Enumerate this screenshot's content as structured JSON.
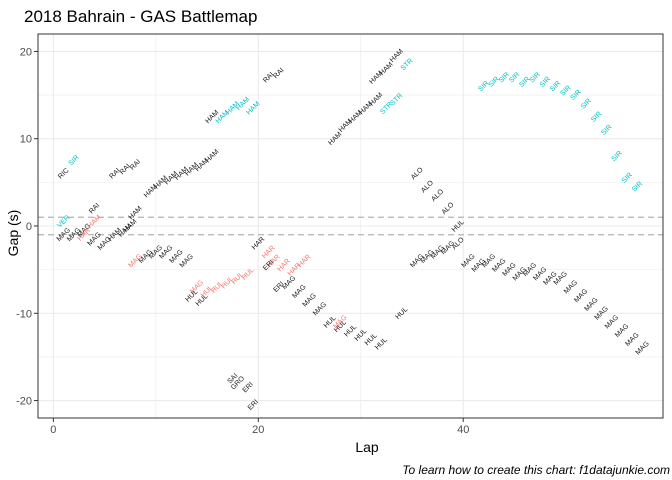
{
  "chart_data": {
    "type": "scatter",
    "title": "2018 Bahrain - GAS Battlemap",
    "xlabel": "Lap",
    "ylabel": "Gap (s)",
    "caption": "To learn how to create this chart: f1datajunkie.com",
    "xlim": [
      -1.5,
      59.5
    ],
    "ylim": [
      -22,
      22
    ],
    "x_ticks": [
      0,
      20,
      40
    ],
    "y_ticks": [
      -20,
      -10,
      0,
      10,
      20
    ],
    "grid": true,
    "reference_lines": [
      1,
      -1
    ],
    "colors": {
      "default": "#1a1a1a",
      "red": "#f8766d",
      "cyan": "#00bfc4",
      "grid": "#ebebeb",
      "reference": "#b3b3b3"
    },
    "points": [
      {
        "x": 1,
        "y": 6,
        "label": "RIC",
        "color": "default"
      },
      {
        "x": 2,
        "y": 7.5,
        "label": "SIR",
        "color": "cyan"
      },
      {
        "x": 1,
        "y": 0.5,
        "label": "VER",
        "color": "cyan"
      },
      {
        "x": 1,
        "y": -1,
        "label": "MAG",
        "color": "default"
      },
      {
        "x": 2,
        "y": -1,
        "label": "MAG",
        "color": "default"
      },
      {
        "x": 3,
        "y": -0.5,
        "label": "MAG",
        "color": "default"
      },
      {
        "x": 3,
        "y": -1,
        "label": "HAR",
        "color": "red"
      },
      {
        "x": 4,
        "y": 2,
        "label": "RAI",
        "color": "default"
      },
      {
        "x": 4,
        "y": 0.5,
        "label": "HAM",
        "color": "red"
      },
      {
        "x": 4,
        "y": -1.5,
        "label": "MAG",
        "color": "default"
      },
      {
        "x": 5,
        "y": -2,
        "label": "MAG",
        "color": "default"
      },
      {
        "x": 6,
        "y": -1,
        "label": "HAM",
        "color": "default"
      },
      {
        "x": 7,
        "y": -0.5,
        "label": "HAM",
        "color": "default"
      },
      {
        "x": 7.5,
        "y": 0,
        "label": "HAM",
        "color": "default"
      },
      {
        "x": 6,
        "y": 6,
        "label": "RAI",
        "color": "default"
      },
      {
        "x": 7,
        "y": 6.5,
        "label": "RAI",
        "color": "default"
      },
      {
        "x": 8,
        "y": 7,
        "label": "RAI",
        "color": "default"
      },
      {
        "x": 8,
        "y": 1.5,
        "label": "HAM",
        "color": "default"
      },
      {
        "x": 8,
        "y": -4,
        "label": "MAG",
        "color": "red"
      },
      {
        "x": 9,
        "y": -3.5,
        "label": "MAG",
        "color": "default"
      },
      {
        "x": 10,
        "y": -3,
        "label": "MAG",
        "color": "default"
      },
      {
        "x": 11,
        "y": -3,
        "label": "MAG",
        "color": "default"
      },
      {
        "x": 12,
        "y": -3.5,
        "label": "MAG",
        "color": "default"
      },
      {
        "x": 13,
        "y": -4,
        "label": "MAG",
        "color": "default"
      },
      {
        "x": 9.5,
        "y": 4,
        "label": "HAM",
        "color": "default"
      },
      {
        "x": 10.5,
        "y": 5,
        "label": "HAM",
        "color": "default"
      },
      {
        "x": 11.5,
        "y": 5.5,
        "label": "HAM",
        "color": "default"
      },
      {
        "x": 12.5,
        "y": 6,
        "label": "HAM",
        "color": "default"
      },
      {
        "x": 13.5,
        "y": 6.5,
        "label": "HAM",
        "color": "default"
      },
      {
        "x": 14.5,
        "y": 7,
        "label": "HAM",
        "color": "default"
      },
      {
        "x": 15.5,
        "y": 8,
        "label": "HAM",
        "color": "default"
      },
      {
        "x": 15.5,
        "y": 12.5,
        "label": "HAM",
        "color": "default"
      },
      {
        "x": 16.5,
        "y": 12.5,
        "label": "HAM",
        "color": "cyan"
      },
      {
        "x": 17.5,
        "y": 13.5,
        "label": "HAM",
        "color": "cyan"
      },
      {
        "x": 18.5,
        "y": 14,
        "label": "HAM",
        "color": "cyan"
      },
      {
        "x": 19.5,
        "y": 13.5,
        "label": "HAM",
        "color": "cyan"
      },
      {
        "x": 14,
        "y": -7,
        "label": "MAG",
        "color": "red"
      },
      {
        "x": 13.5,
        "y": -8,
        "label": "HUL",
        "color": "default"
      },
      {
        "x": 14.5,
        "y": -8.5,
        "label": "HUL",
        "color": "default"
      },
      {
        "x": 15,
        "y": -7.5,
        "label": "HUL",
        "color": "red"
      },
      {
        "x": 16,
        "y": -7,
        "label": "HUL",
        "color": "red"
      },
      {
        "x": 17,
        "y": -6.5,
        "label": "HUL",
        "color": "red"
      },
      {
        "x": 18,
        "y": -6,
        "label": "HUL",
        "color": "red"
      },
      {
        "x": 19,
        "y": -5.5,
        "label": "HUL",
        "color": "red"
      },
      {
        "x": 21,
        "y": 17,
        "label": "RAI",
        "color": "default"
      },
      {
        "x": 22,
        "y": 17.5,
        "label": "RAI",
        "color": "default"
      },
      {
        "x": 20,
        "y": -2,
        "label": "HAR",
        "color": "default"
      },
      {
        "x": 21,
        "y": -3,
        "label": "HAR",
        "color": "red"
      },
      {
        "x": 21.5,
        "y": -4,
        "label": "HAR",
        "color": "red"
      },
      {
        "x": 22.5,
        "y": -4.5,
        "label": "HAR",
        "color": "red"
      },
      {
        "x": 23.5,
        "y": -5,
        "label": "HAR",
        "color": "red"
      },
      {
        "x": 24.5,
        "y": -4,
        "label": "HAR",
        "color": "red"
      },
      {
        "x": 21,
        "y": -4.5,
        "label": "ERI",
        "color": "default"
      },
      {
        "x": 22,
        "y": -7,
        "label": "ERI",
        "color": "default"
      },
      {
        "x": 23,
        "y": -6.5,
        "label": "MAG",
        "color": "default"
      },
      {
        "x": 24,
        "y": -7.5,
        "label": "MAG",
        "color": "default"
      },
      {
        "x": 25,
        "y": -8.5,
        "label": "MAG",
        "color": "default"
      },
      {
        "x": 26,
        "y": -9.5,
        "label": "MAG",
        "color": "default"
      },
      {
        "x": 27,
        "y": -11,
        "label": "HUL",
        "color": "default"
      },
      {
        "x": 28,
        "y": -11.5,
        "label": "HUL",
        "color": "default"
      },
      {
        "x": 28,
        "y": -11,
        "label": "MAG",
        "color": "red"
      },
      {
        "x": 29,
        "y": -12,
        "label": "HUL",
        "color": "default"
      },
      {
        "x": 30,
        "y": -12.5,
        "label": "HUL",
        "color": "default"
      },
      {
        "x": 31,
        "y": -13,
        "label": "HUL",
        "color": "default"
      },
      {
        "x": 32,
        "y": -13.5,
        "label": "HUL",
        "color": "default"
      },
      {
        "x": 34,
        "y": -10,
        "label": "HUL",
        "color": "default"
      },
      {
        "x": 17.5,
        "y": -17.5,
        "label": "SAI",
        "color": "default"
      },
      {
        "x": 18,
        "y": -18,
        "label": "GRO",
        "color": "default"
      },
      {
        "x": 19,
        "y": -18.5,
        "label": "ERI",
        "color": "default"
      },
      {
        "x": 19.5,
        "y": -20.5,
        "label": "ERI",
        "color": "default"
      },
      {
        "x": 27.5,
        "y": 10,
        "label": "HAM",
        "color": "default"
      },
      {
        "x": 28.5,
        "y": 11.5,
        "label": "HAM",
        "color": "default"
      },
      {
        "x": 29.5,
        "y": 12.5,
        "label": "HAM",
        "color": "default"
      },
      {
        "x": 30.5,
        "y": 13.5,
        "label": "HAM",
        "color": "default"
      },
      {
        "x": 31.5,
        "y": 14.5,
        "label": "HAM",
        "color": "default"
      },
      {
        "x": 31.5,
        "y": 17,
        "label": "HAM",
        "color": "default"
      },
      {
        "x": 32.5,
        "y": 18,
        "label": "HAM",
        "color": "default"
      },
      {
        "x": 33.5,
        "y": 19.5,
        "label": "HAM",
        "color": "default"
      },
      {
        "x": 32.5,
        "y": 13.5,
        "label": "STR",
        "color": "cyan"
      },
      {
        "x": 33.5,
        "y": 14.5,
        "label": "STR",
        "color": "cyan"
      },
      {
        "x": 34.5,
        "y": 18.5,
        "label": "STR",
        "color": "cyan"
      },
      {
        "x": 35.5,
        "y": 6,
        "label": "ALO",
        "color": "default"
      },
      {
        "x": 36.5,
        "y": 4.5,
        "label": "ALO",
        "color": "default"
      },
      {
        "x": 37.5,
        "y": 3.5,
        "label": "ALO",
        "color": "default"
      },
      {
        "x": 38.5,
        "y": 2,
        "label": "ALO",
        "color": "default"
      },
      {
        "x": 39.5,
        "y": 0,
        "label": "HUL",
        "color": "default"
      },
      {
        "x": 35.5,
        "y": -4,
        "label": "MAG",
        "color": "default"
      },
      {
        "x": 36.5,
        "y": -3.5,
        "label": "MAG",
        "color": "default"
      },
      {
        "x": 37.5,
        "y": -3,
        "label": "MAG",
        "color": "default"
      },
      {
        "x": 38.5,
        "y": -2.5,
        "label": "MAG",
        "color": "default"
      },
      {
        "x": 39.5,
        "y": -2,
        "label": "ALO",
        "color": "default"
      },
      {
        "x": 40.5,
        "y": -4,
        "label": "MAG",
        "color": "default"
      },
      {
        "x": 41.5,
        "y": -4.5,
        "label": "MAG",
        "color": "default"
      },
      {
        "x": 42.5,
        "y": -4,
        "label": "MAG",
        "color": "default"
      },
      {
        "x": 43.5,
        "y": -4.5,
        "label": "MAG",
        "color": "default"
      },
      {
        "x": 44.5,
        "y": -5,
        "label": "MAG",
        "color": "default"
      },
      {
        "x": 45.5,
        "y": -5.5,
        "label": "MAG",
        "color": "default"
      },
      {
        "x": 46.5,
        "y": -5,
        "label": "MAG",
        "color": "default"
      },
      {
        "x": 47.5,
        "y": -5.5,
        "label": "MAG",
        "color": "default"
      },
      {
        "x": 48.5,
        "y": -6,
        "label": "MAG",
        "color": "default"
      },
      {
        "x": 49.5,
        "y": -6,
        "label": "MAG",
        "color": "default"
      },
      {
        "x": 50.5,
        "y": -7,
        "label": "MAG",
        "color": "default"
      },
      {
        "x": 51.5,
        "y": -8,
        "label": "MAG",
        "color": "default"
      },
      {
        "x": 52.5,
        "y": -9,
        "label": "MAG",
        "color": "default"
      },
      {
        "x": 53.5,
        "y": -10,
        "label": "MAG",
        "color": "default"
      },
      {
        "x": 54.5,
        "y": -11,
        "label": "MAG",
        "color": "default"
      },
      {
        "x": 55.5,
        "y": -12,
        "label": "MAG",
        "color": "default"
      },
      {
        "x": 56.5,
        "y": -13,
        "label": "MAG",
        "color": "default"
      },
      {
        "x": 57.5,
        "y": -14,
        "label": "MAG",
        "color": "default"
      },
      {
        "x": 42,
        "y": 16,
        "label": "SIR",
        "color": "cyan"
      },
      {
        "x": 43,
        "y": 16.5,
        "label": "SIR",
        "color": "cyan"
      },
      {
        "x": 44,
        "y": 17,
        "label": "SIR",
        "color": "cyan"
      },
      {
        "x": 45,
        "y": 17,
        "label": "SIR",
        "color": "cyan"
      },
      {
        "x": 46,
        "y": 16.5,
        "label": "SIR",
        "color": "cyan"
      },
      {
        "x": 47,
        "y": 17,
        "label": "SIR",
        "color": "cyan"
      },
      {
        "x": 48,
        "y": 16.5,
        "label": "SIR",
        "color": "cyan"
      },
      {
        "x": 49,
        "y": 16,
        "label": "SIR",
        "color": "cyan"
      },
      {
        "x": 50,
        "y": 15.5,
        "label": "SIR",
        "color": "cyan"
      },
      {
        "x": 51,
        "y": 15,
        "label": "SIR",
        "color": "cyan"
      },
      {
        "x": 52,
        "y": 14,
        "label": "SIR",
        "color": "cyan"
      },
      {
        "x": 53,
        "y": 12.5,
        "label": "SIR",
        "color": "cyan"
      },
      {
        "x": 54,
        "y": 11,
        "label": "SIR",
        "color": "cyan"
      },
      {
        "x": 55,
        "y": 8,
        "label": "SIR",
        "color": "cyan"
      },
      {
        "x": 56,
        "y": 5.5,
        "label": "SIR",
        "color": "cyan"
      },
      {
        "x": 57,
        "y": 4.5,
        "label": "SIR",
        "color": "cyan"
      }
    ]
  }
}
